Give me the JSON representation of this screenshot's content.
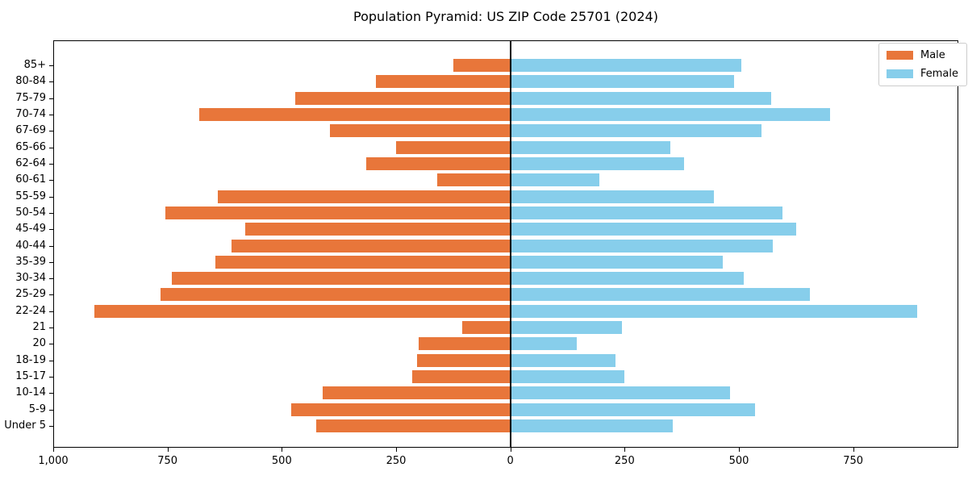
{
  "figure": {
    "title": "Population Pyramid: US ZIP Code 25701 (2024)"
  },
  "legend": {
    "male_label": "Male",
    "female_label": "Female"
  },
  "colors": {
    "male": "#e8763a",
    "female": "#87ceeb",
    "axis": "#000000",
    "legend_border": "#cccccc",
    "background": "#ffffff"
  },
  "chart_data": {
    "type": "bar",
    "orientation": "horizontal_pyramid",
    "title": "Population Pyramid: US ZIP Code 25701 (2024)",
    "categories": [
      "85+",
      "80-84",
      "75-79",
      "70-74",
      "67-69",
      "65-66",
      "62-64",
      "60-61",
      "55-59",
      "50-54",
      "45-49",
      "40-44",
      "35-39",
      "30-34",
      "25-29",
      "22-24",
      "21",
      "20",
      "18-19",
      "15-17",
      "10-14",
      "5-9",
      "Under 5"
    ],
    "series": [
      {
        "name": "Male",
        "side": "left",
        "color": "#e8763a",
        "values": [
          125,
          295,
          470,
          680,
          395,
          250,
          315,
          160,
          640,
          755,
          580,
          610,
          645,
          740,
          765,
          910,
          105,
          200,
          205,
          215,
          410,
          480,
          425
        ]
      },
      {
        "name": "Female",
        "side": "right",
        "color": "#87ceeb",
        "values": [
          505,
          490,
          570,
          700,
          550,
          350,
          380,
          195,
          445,
          595,
          625,
          575,
          465,
          510,
          655,
          890,
          245,
          145,
          230,
          250,
          480,
          535,
          355
        ]
      }
    ],
    "x_ticks": {
      "values": [
        -1000,
        -750,
        -500,
        -250,
        0,
        250,
        500,
        750
      ],
      "labels": [
        "1,000",
        "750",
        "500",
        "250",
        "0",
        "250",
        "500",
        "750"
      ]
    },
    "xlim": [
      -1000,
      980
    ],
    "grid": false,
    "zero_line": true,
    "legend_position": "upper right"
  }
}
